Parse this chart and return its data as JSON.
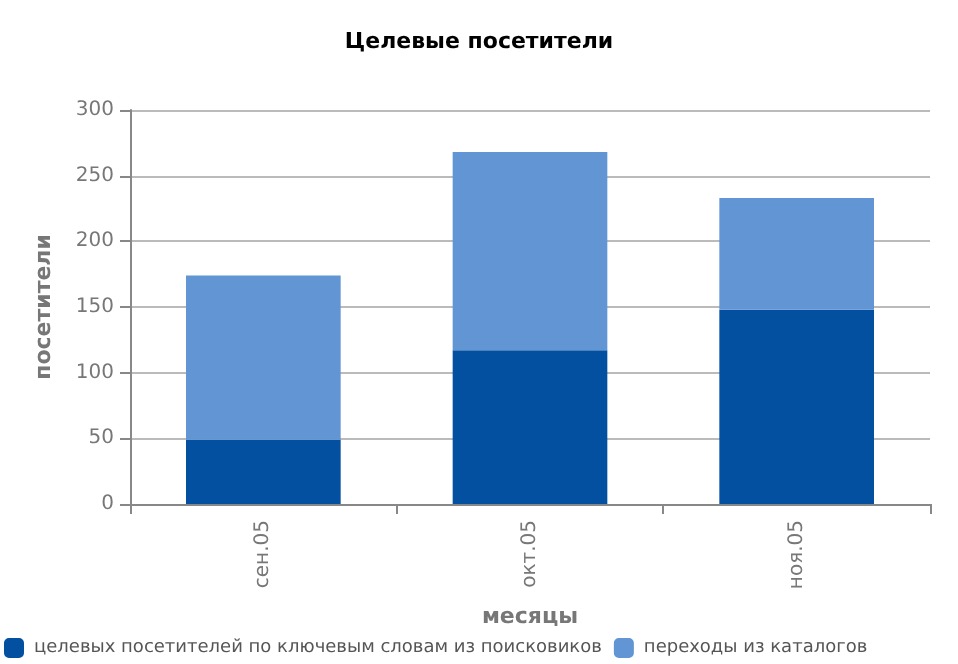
{
  "chart_data": {
    "type": "bar",
    "title": "Целевые посетители",
    "xlabel": "месяцы",
    "ylabel": "посетители",
    "categories": [
      "сен.05",
      "окт.05",
      "ноя.05"
    ],
    "series": [
      {
        "name": "целевых посетителей по ключевым словам из поисковиков",
        "color": "#0350a0",
        "values": [
          49,
          117,
          148
        ]
      },
      {
        "name": "переходы из каталогов",
        "color": "#6195d4",
        "values": [
          125,
          151,
          85
        ]
      }
    ],
    "stacked": true,
    "ylim": [
      0,
      300
    ],
    "yticks": [
      0,
      50,
      100,
      150,
      200,
      250,
      300
    ],
    "grid": "y",
    "legend": "bottom"
  }
}
